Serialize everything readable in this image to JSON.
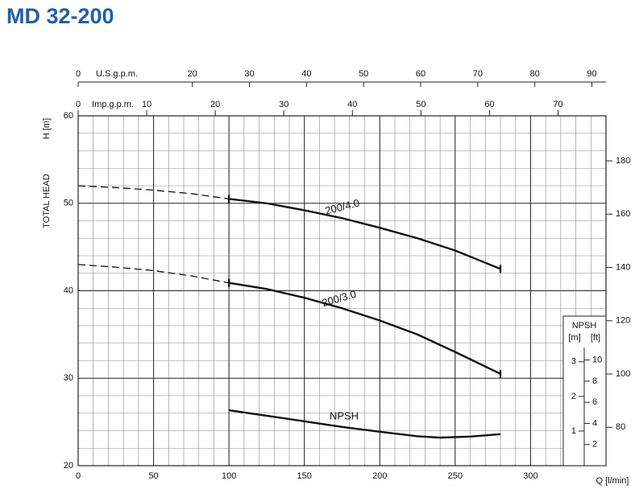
{
  "chart_data": {
    "type": "line",
    "title": "MD 32-200",
    "xlabel": "Q [l/min]",
    "ylabel": "TOTAL HEAD",
    "ylabel_unit": "H [m]",
    "xlim": [
      0,
      350
    ],
    "xticks": [
      0,
      50,
      100,
      150,
      200,
      250,
      300
    ],
    "xminor": 10,
    "ylim": [
      20,
      60
    ],
    "yticks": [
      20,
      30,
      40,
      50,
      60
    ],
    "yminor": 2,
    "y2lim": [
      65.6,
      196.9
    ],
    "y2ticks": [
      80,
      100,
      120,
      140,
      160,
      180
    ],
    "grid": true,
    "top_axes": [
      {
        "label": "U.S.g.p.m.",
        "xlim": [
          0,
          92.47
        ],
        "xticks": [
          0,
          20,
          30,
          40,
          50,
          60,
          70,
          80,
          90
        ]
      },
      {
        "label": "Imp.g.p.m.",
        "xlim": [
          0,
          76.99
        ],
        "xticks": [
          0,
          10,
          20,
          30,
          40,
          50,
          60,
          70
        ]
      }
    ],
    "npsh": {
      "title": "NPSH",
      "unit_m": "[m]",
      "unit_ft": "[ft]",
      "lim": [
        0,
        10.1
      ],
      "ticks": [
        1,
        2,
        3
      ],
      "ft_lim": [
        0,
        33.1
      ],
      "ft_ticks": [
        2,
        4,
        6,
        8,
        10
      ]
    },
    "series": [
      {
        "name": "200/4.0",
        "color": "#111111",
        "dashed_until": 100,
        "x": [
          0,
          25,
          50,
          75,
          100,
          125,
          150,
          175,
          200,
          225,
          250,
          280
        ],
        "values": [
          52.0,
          51.8,
          51.5,
          51.1,
          50.5,
          50.0,
          49.2,
          48.3,
          47.2,
          46.0,
          44.6,
          42.5
        ]
      },
      {
        "name": "200/3.0",
        "color": "#111111",
        "dashed_until": 100,
        "x": [
          0,
          25,
          50,
          75,
          100,
          125,
          150,
          175,
          200,
          225,
          250,
          280
        ],
        "values": [
          43.0,
          42.7,
          42.3,
          41.7,
          40.9,
          40.2,
          39.2,
          38.0,
          36.6,
          35.0,
          33.0,
          30.5
        ]
      },
      {
        "name": "NPSH",
        "color": "#111111",
        "axis": "npsh",
        "x": [
          100,
          125,
          150,
          175,
          200,
          225,
          240,
          260,
          280
        ],
        "values": [
          1.6,
          1.44,
          1.28,
          1.12,
          0.98,
          0.85,
          0.81,
          0.84,
          0.91
        ]
      }
    ]
  }
}
